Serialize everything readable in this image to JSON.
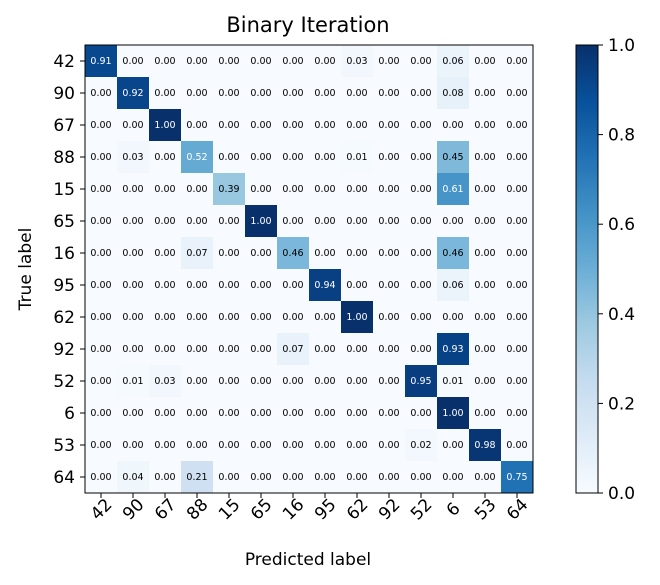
{
  "chart_data": {
    "type": "heatmap",
    "title": "Binary Iteration",
    "xlabel": "Predicted label",
    "ylabel": "True label",
    "row_labels": [
      "42",
      "90",
      "67",
      "88",
      "15",
      "65",
      "16",
      "95",
      "62",
      "92",
      "52",
      "6",
      "53",
      "64"
    ],
    "col_labels": [
      "42",
      "90",
      "67",
      "88",
      "15",
      "65",
      "16",
      "95",
      "62",
      "92",
      "52",
      "6",
      "53",
      "64"
    ],
    "values": [
      [
        0.91,
        0.0,
        0.0,
        0.0,
        0.0,
        0.0,
        0.0,
        0.0,
        0.03,
        0.0,
        0.0,
        0.06,
        0.0,
        0.0
      ],
      [
        0.0,
        0.92,
        0.0,
        0.0,
        0.0,
        0.0,
        0.0,
        0.0,
        0.0,
        0.0,
        0.0,
        0.08,
        0.0,
        0.0
      ],
      [
        0.0,
        0.0,
        1.0,
        0.0,
        0.0,
        0.0,
        0.0,
        0.0,
        0.0,
        0.0,
        0.0,
        0.0,
        0.0,
        0.0
      ],
      [
        0.0,
        0.03,
        0.0,
        0.52,
        0.0,
        0.0,
        0.0,
        0.0,
        0.01,
        0.0,
        0.0,
        0.45,
        0.0,
        0.0
      ],
      [
        0.0,
        0.0,
        0.0,
        0.0,
        0.39,
        0.0,
        0.0,
        0.0,
        0.0,
        0.0,
        0.0,
        0.61,
        0.0,
        0.0
      ],
      [
        0.0,
        0.0,
        0.0,
        0.0,
        0.0,
        1.0,
        0.0,
        0.0,
        0.0,
        0.0,
        0.0,
        0.0,
        0.0,
        0.0
      ],
      [
        0.0,
        0.0,
        0.0,
        0.07,
        0.0,
        0.0,
        0.46,
        0.0,
        0.0,
        0.0,
        0.0,
        0.46,
        0.0,
        0.0
      ],
      [
        0.0,
        0.0,
        0.0,
        0.0,
        0.0,
        0.0,
        0.0,
        0.94,
        0.0,
        0.0,
        0.0,
        0.06,
        0.0,
        0.0
      ],
      [
        0.0,
        0.0,
        0.0,
        0.0,
        0.0,
        0.0,
        0.0,
        0.0,
        1.0,
        0.0,
        0.0,
        0.0,
        0.0,
        0.0
      ],
      [
        0.0,
        0.0,
        0.0,
        0.0,
        0.0,
        0.0,
        0.07,
        0.0,
        0.0,
        0.0,
        0.0,
        0.93,
        0.0,
        0.0
      ],
      [
        0.0,
        0.01,
        0.03,
        0.0,
        0.0,
        0.0,
        0.0,
        0.0,
        0.0,
        0.0,
        0.95,
        0.01,
        0.0,
        0.0
      ],
      [
        0.0,
        0.0,
        0.0,
        0.0,
        0.0,
        0.0,
        0.0,
        0.0,
        0.0,
        0.0,
        0.0,
        1.0,
        0.0,
        0.0
      ],
      [
        0.0,
        0.0,
        0.0,
        0.0,
        0.0,
        0.0,
        0.0,
        0.0,
        0.0,
        0.0,
        0.02,
        0.0,
        0.98,
        0.0
      ],
      [
        0.0,
        0.04,
        0.0,
        0.21,
        0.0,
        0.0,
        0.0,
        0.0,
        0.0,
        0.0,
        0.0,
        0.0,
        0.0,
        0.75
      ]
    ],
    "colormap": "Blues",
    "colorbar": {
      "range": [
        0.0,
        1.0
      ],
      "ticks": [
        "0.0",
        "0.2",
        "0.4",
        "0.6",
        "0.8",
        "1.0"
      ]
    },
    "grid": false
  }
}
